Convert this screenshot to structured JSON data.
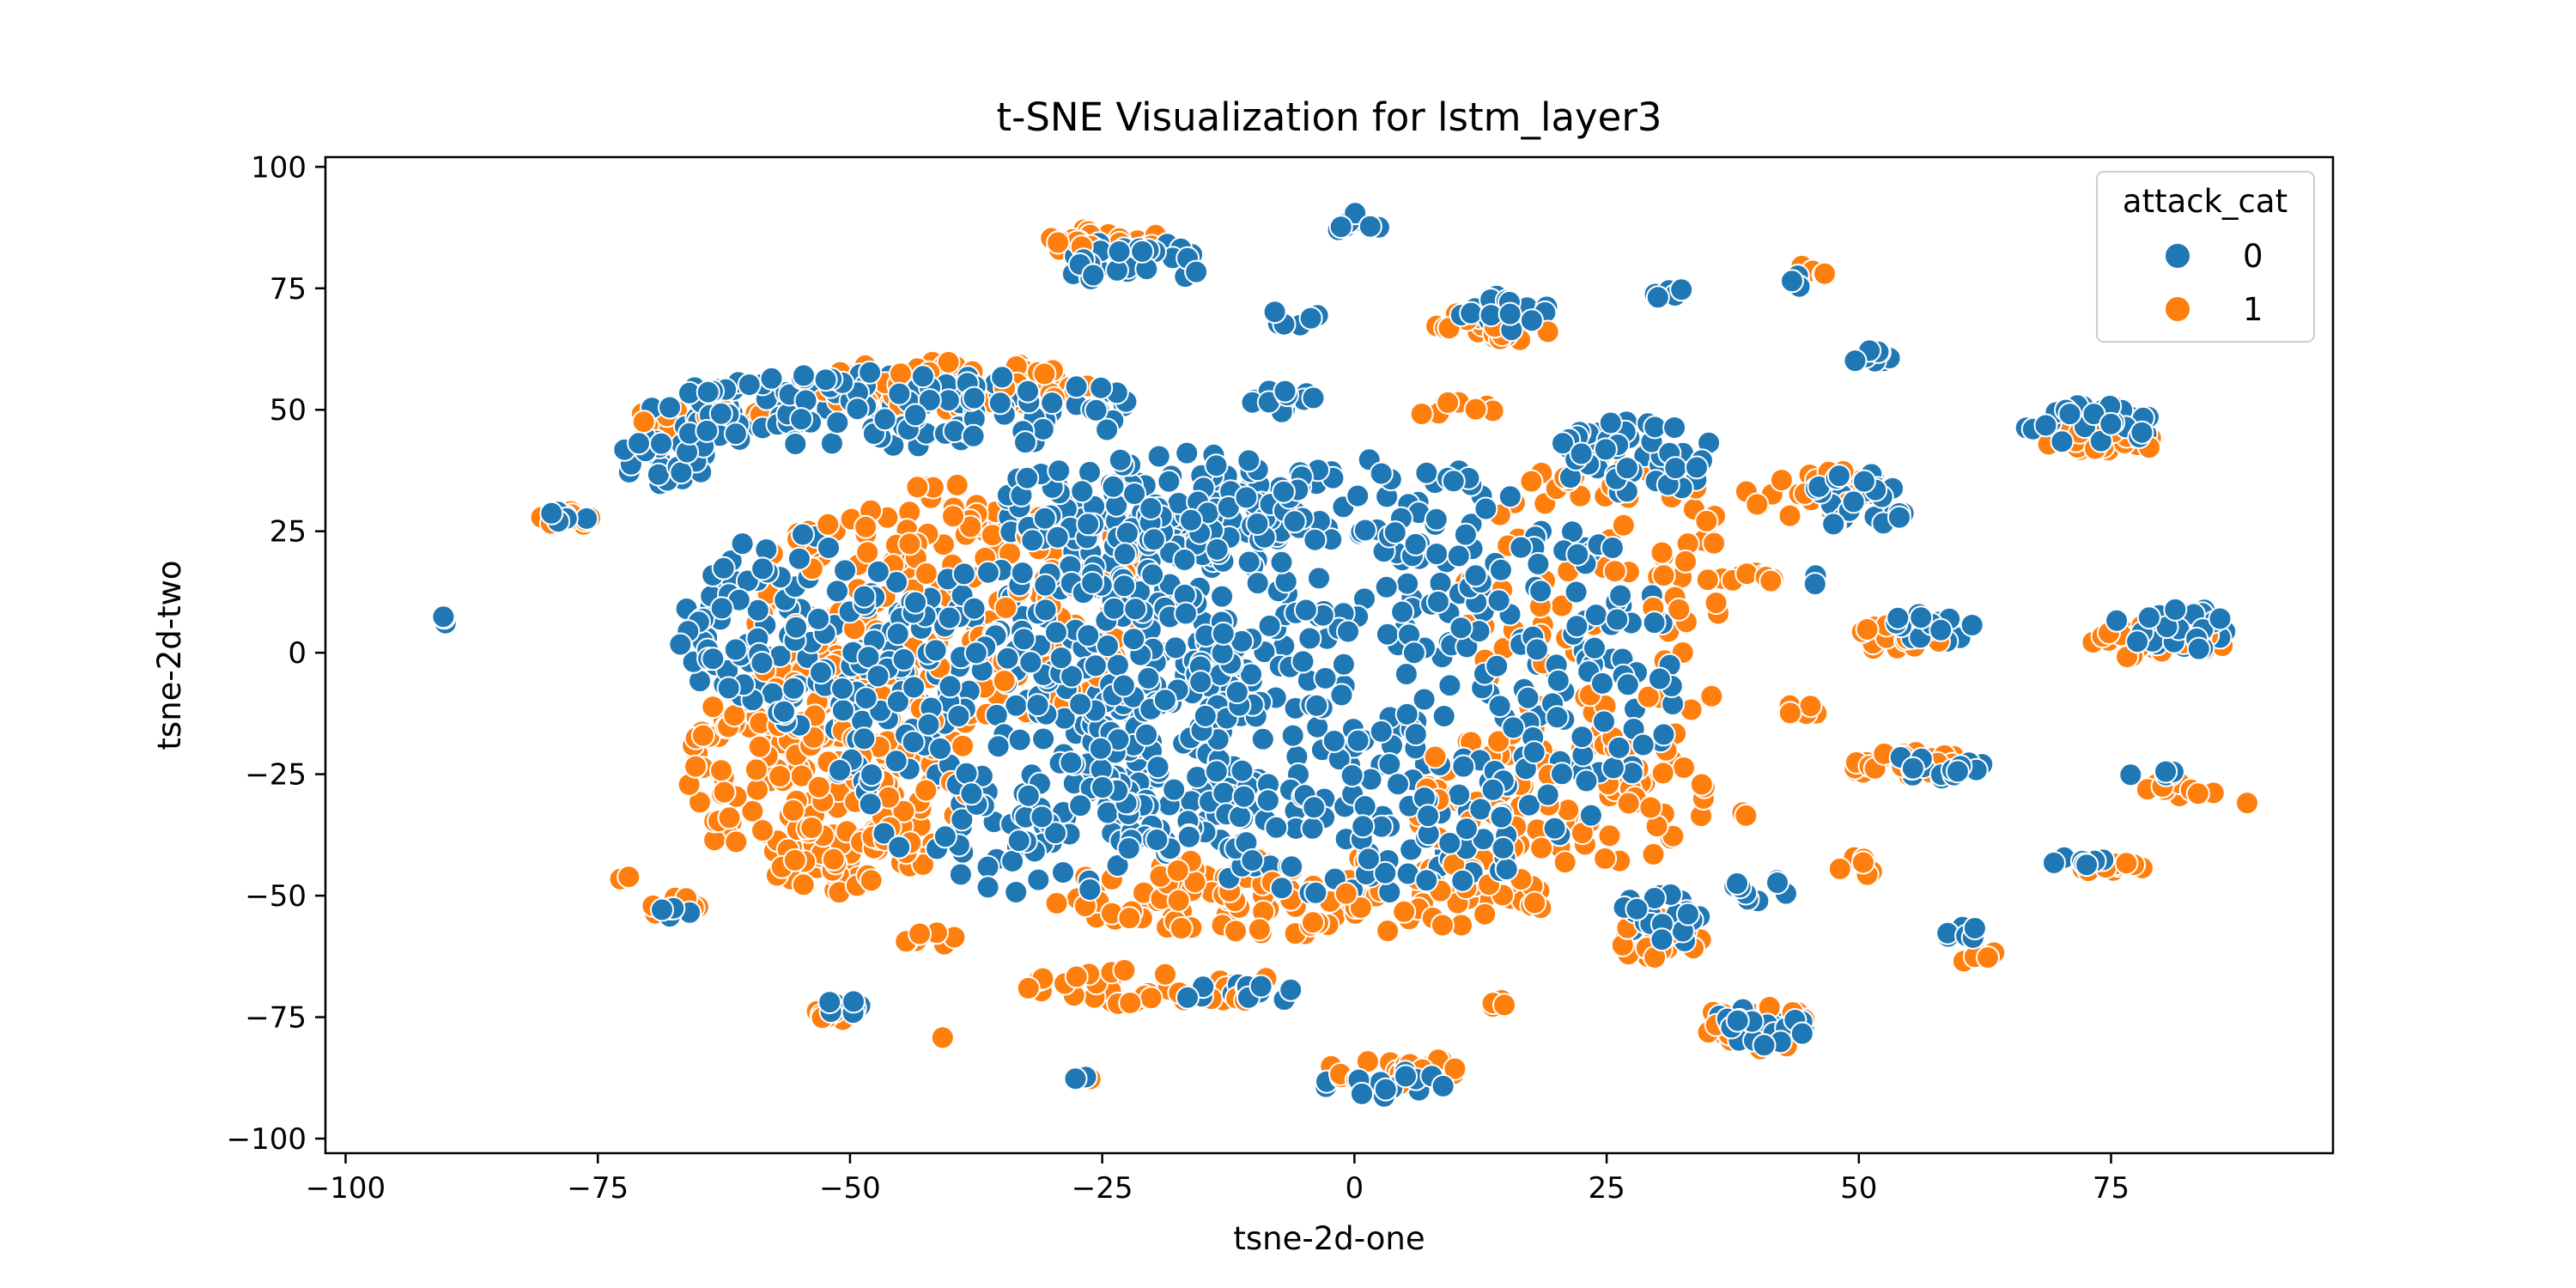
{
  "chart_data": {
    "type": "scatter",
    "title": "t-SNE Visualization for lstm_layer3",
    "xlabel": "tsne-2d-one",
    "ylabel": "tsne-2d-two",
    "xlim": [
      -102,
      97
    ],
    "ylim": [
      -103,
      102
    ],
    "xticks": [
      -100,
      -75,
      -50,
      -25,
      0,
      25,
      50,
      75
    ],
    "yticks": [
      -100,
      -75,
      -50,
      -25,
      0,
      25,
      50,
      75,
      100
    ],
    "xtick_labels": [
      "−100",
      "−75",
      "−50",
      "−25",
      "0",
      "25",
      "50",
      "75"
    ],
    "ytick_labels": [
      "−100",
      "−75",
      "−50",
      "−25",
      "0",
      "25",
      "50",
      "75",
      "100"
    ],
    "grid": false,
    "legend": {
      "title": "attack_cat",
      "position": "top-right",
      "entries": [
        {
          "label": "0",
          "color": "#1f77b4"
        },
        {
          "label": "1",
          "color": "#ff7f0e"
        }
      ]
    },
    "series": [
      {
        "name": "0",
        "color": "#1f77b4",
        "clusters": [
          {
            "cx": 0,
            "cy": -5,
            "rx": 32,
            "ry": 45,
            "n": 520
          },
          {
            "cx": -30,
            "cy": -15,
            "rx": 22,
            "ry": 35,
            "n": 320
          },
          {
            "cx": -55,
            "cy": 5,
            "rx": 12,
            "ry": 20,
            "n": 110
          },
          {
            "cx": -20,
            "cy": 30,
            "rx": 16,
            "ry": 12,
            "n": 130
          },
          {
            "cx": 28,
            "cy": 40,
            "rx": 8,
            "ry": 8,
            "n": 50
          },
          {
            "cx": -45,
            "cy": 50,
            "rx": 25,
            "ry": 8,
            "n": 150
          },
          {
            "cx": -68,
            "cy": 40,
            "rx": 5,
            "ry": 6,
            "n": 25
          },
          {
            "cx": -22,
            "cy": 80,
            "rx": 7,
            "ry": 5,
            "n": 30
          },
          {
            "cx": 0,
            "cy": 88,
            "rx": 2.5,
            "ry": 3,
            "n": 8
          },
          {
            "cx": 15,
            "cy": 70,
            "rx": 5,
            "ry": 4,
            "n": 18
          },
          {
            "cx": -7,
            "cy": 52,
            "rx": 4,
            "ry": 3,
            "n": 12
          },
          {
            "cx": -6,
            "cy": 69,
            "rx": 2.5,
            "ry": 2,
            "n": 7
          },
          {
            "cx": 31,
            "cy": 74,
            "rx": 2,
            "ry": 1.5,
            "n": 5
          },
          {
            "cx": 50,
            "cy": 31,
            "rx": 5,
            "ry": 6,
            "n": 30
          },
          {
            "cx": 51,
            "cy": 61,
            "rx": 2.5,
            "ry": 1.5,
            "n": 8
          },
          {
            "cx": 45,
            "cy": 77,
            "rx": 2,
            "ry": 2,
            "n": 6
          },
          {
            "cx": 73,
            "cy": 47,
            "rx": 7,
            "ry": 4,
            "n": 30
          },
          {
            "cx": 57,
            "cy": 5,
            "rx": 5,
            "ry": 3,
            "n": 18
          },
          {
            "cx": 81,
            "cy": 5,
            "rx": 6,
            "ry": 5,
            "n": 28
          },
          {
            "cx": 58,
            "cy": -23,
            "rx": 5,
            "ry": 3,
            "n": 16
          },
          {
            "cx": 79,
            "cy": -25,
            "rx": 2.5,
            "ry": 1.5,
            "n": 6
          },
          {
            "cx": 72,
            "cy": -43,
            "rx": 3,
            "ry": 1,
            "n": 8
          },
          {
            "cx": 31,
            "cy": -54,
            "rx": 5,
            "ry": 6,
            "n": 22
          },
          {
            "cx": 40,
            "cy": -49,
            "rx": 3,
            "ry": 3,
            "n": 10
          },
          {
            "cx": 60,
            "cy": -58,
            "rx": 2,
            "ry": 2,
            "n": 6
          },
          {
            "cx": 40,
            "cy": -77,
            "rx": 5,
            "ry": 4,
            "n": 22
          },
          {
            "cx": 3,
            "cy": -89,
            "rx": 6,
            "ry": 3,
            "n": 18
          },
          {
            "cx": -12,
            "cy": -70,
            "rx": 7,
            "ry": 2,
            "n": 15
          },
          {
            "cx": -51,
            "cy": -73,
            "rx": 2.5,
            "ry": 1.5,
            "n": 7
          },
          {
            "cx": -67,
            "cy": -54,
            "rx": 2,
            "ry": 2,
            "n": 6
          },
          {
            "cx": -90,
            "cy": 6,
            "rx": 1.5,
            "ry": 1.5,
            "n": 5
          },
          {
            "cx": -78,
            "cy": 28,
            "rx": 2,
            "ry": 1.5,
            "n": 5
          },
          {
            "cx": 46,
            "cy": 15,
            "rx": 1,
            "ry": 1,
            "n": 2
          },
          {
            "cx": -27,
            "cy": -88,
            "rx": 1,
            "ry": 1,
            "n": 2
          }
        ]
      },
      {
        "name": "1",
        "color": "#ff7f0e",
        "clusters": [
          {
            "cx": -52,
            "cy": -25,
            "rx": 14,
            "ry": 25,
            "n": 260
          },
          {
            "cx": -40,
            "cy": 10,
            "rx": 20,
            "ry": 25,
            "n": 190
          },
          {
            "cx": -5,
            "cy": -50,
            "rx": 25,
            "ry": 8,
            "n": 130
          },
          {
            "cx": 20,
            "cy": -30,
            "rx": 15,
            "ry": 15,
            "n": 90
          },
          {
            "cx": 25,
            "cy": 10,
            "rx": 15,
            "ry": 30,
            "n": 100
          },
          {
            "cx": -40,
            "cy": 55,
            "rx": 15,
            "ry": 5,
            "n": 70
          },
          {
            "cx": -65,
            "cy": 48,
            "rx": 8,
            "ry": 3,
            "n": 30
          },
          {
            "cx": -25,
            "cy": 85,
            "rx": 6,
            "ry": 3,
            "n": 28
          },
          {
            "cx": 14,
            "cy": 68,
            "rx": 6,
            "ry": 4,
            "n": 24
          },
          {
            "cx": 10,
            "cy": 50,
            "rx": 4,
            "ry": 2,
            "n": 8
          },
          {
            "cx": -20,
            "cy": -69,
            "rx": 13,
            "ry": 4,
            "n": 40
          },
          {
            "cx": 4,
            "cy": -86,
            "rx": 7,
            "ry": 3,
            "n": 26
          },
          {
            "cx": 30,
            "cy": -58,
            "rx": 5,
            "ry": 5,
            "n": 22
          },
          {
            "cx": 40,
            "cy": -77,
            "rx": 6,
            "ry": 5,
            "n": 26
          },
          {
            "cx": 55,
            "cy": -23,
            "rx": 6,
            "ry": 3,
            "n": 24
          },
          {
            "cx": 55,
            "cy": 3,
            "rx": 6,
            "ry": 3,
            "n": 24
          },
          {
            "cx": 80,
            "cy": 3,
            "rx": 7,
            "ry": 5,
            "n": 30
          },
          {
            "cx": 45,
            "cy": 33,
            "rx": 8,
            "ry": 5,
            "n": 28
          },
          {
            "cx": 75,
            "cy": 44,
            "rx": 7,
            "ry": 3,
            "n": 24
          },
          {
            "cx": 46,
            "cy": 79,
            "rx": 2,
            "ry": 1.5,
            "n": 6
          },
          {
            "cx": -78,
            "cy": 28,
            "rx": 3,
            "ry": 2,
            "n": 9
          },
          {
            "cx": -68,
            "cy": -52,
            "rx": 3,
            "ry": 2,
            "n": 9
          },
          {
            "cx": -42,
            "cy": -59,
            "rx": 3,
            "ry": 1.5,
            "n": 8
          },
          {
            "cx": -52,
            "cy": -75,
            "rx": 3,
            "ry": 1.5,
            "n": 8
          },
          {
            "cx": 75,
            "cy": -44,
            "rx": 5,
            "ry": 1.5,
            "n": 12
          },
          {
            "cx": 82,
            "cy": -28,
            "rx": 4,
            "ry": 2,
            "n": 9
          },
          {
            "cx": 62,
            "cy": -62,
            "rx": 2,
            "ry": 3,
            "n": 6
          },
          {
            "cx": 40,
            "cy": 15,
            "rx": 3,
            "ry": 1.5,
            "n": 8
          },
          {
            "cx": 44,
            "cy": -12,
            "rx": 2,
            "ry": 1.5,
            "n": 5
          },
          {
            "cx": 50,
            "cy": -44,
            "rx": 2,
            "ry": 2,
            "n": 6
          },
          {
            "cx": 14,
            "cy": -72,
            "rx": 1.5,
            "ry": 1,
            "n": 4
          },
          {
            "cx": -72,
            "cy": -46,
            "rx": 1,
            "ry": 1,
            "n": 2
          },
          {
            "cx": -27,
            "cy": -87,
            "rx": 1.5,
            "ry": 1,
            "n": 4
          },
          {
            "cx": -41,
            "cy": -79,
            "rx": 0.5,
            "ry": 0.5,
            "n": 1
          },
          {
            "cx": 39,
            "cy": -33,
            "rx": 1,
            "ry": 1,
            "n": 2
          },
          {
            "cx": 88,
            "cy": -31,
            "rx": 0.5,
            "ry": 0.5,
            "n": 1
          }
        ]
      }
    ]
  }
}
